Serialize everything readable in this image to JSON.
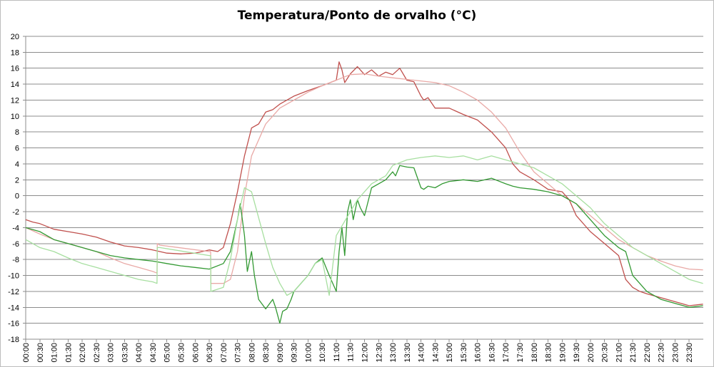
{
  "chart_data": {
    "type": "line",
    "title": "Temperatura/Ponto de orvalho (°C)",
    "xlabel": "",
    "ylabel": "",
    "ylim": [
      -18,
      20
    ],
    "y_ticks": [
      20,
      18,
      16,
      14,
      12,
      10,
      8,
      6,
      4,
      2,
      0,
      -2,
      -4,
      -6,
      -8,
      -10,
      -12,
      -14,
      -16,
      -18
    ],
    "x_tick_labels": [
      "00:00",
      "00:30",
      "01:00",
      "01:30",
      "02:00",
      "02:30",
      "03:00",
      "03:30",
      "04:00",
      "04:30",
      "05:00",
      "05:30",
      "06:00",
      "06:30",
      "07:00",
      "07:30",
      "08:00",
      "08:30",
      "09:00",
      "09:30",
      "10:00",
      "10:30",
      "11:00",
      "11:30",
      "12:00",
      "12:30",
      "13:00",
      "13:30",
      "14:00",
      "14:30",
      "15:00",
      "15:30",
      "16:00",
      "16:30",
      "17:00",
      "17:30",
      "18:00",
      "18:30",
      "19:00",
      "19:30",
      "20:00",
      "20:30",
      "21:00",
      "21:30",
      "22:00",
      "22:30",
      "23:00",
      "23:30"
    ],
    "grid": true,
    "legend": "none",
    "series": [
      {
        "color": "#c0504d",
        "x": [
          0,
          0.25,
          0.5,
          1,
          1.5,
          2,
          2.5,
          3,
          3.5,
          4,
          4.5,
          5,
          5.5,
          6,
          6.5,
          6.8,
          7,
          7.25,
          7.5,
          7.75,
          8,
          8.25,
          8.5,
          8.75,
          9,
          9.5,
          10,
          10.5,
          11,
          11.1,
          11.2,
          11.3,
          11.5,
          11.75,
          12,
          12.25,
          12.5,
          12.75,
          13,
          13.25,
          13.5,
          13.75,
          14,
          14.1,
          14.25,
          14.5,
          15,
          15.5,
          16,
          16.5,
          17,
          17.25,
          17.5,
          18,
          18.5,
          19,
          19.25,
          19.5,
          20,
          20.5,
          21,
          21.25,
          21.5,
          21.75,
          22,
          22.5,
          23,
          23.5,
          23.99
        ],
        "y": [
          -3,
          -3.3,
          -3.5,
          -4.2,
          -4.5,
          -4.8,
          -5.2,
          -5.8,
          -6.3,
          -6.5,
          -6.8,
          -7.2,
          -7.3,
          -7.2,
          -6.8,
          -7.0,
          -6.5,
          -3.5,
          0.5,
          5,
          8.5,
          9.0,
          10.5,
          10.8,
          11.5,
          12.5,
          13.2,
          13.8,
          14.5,
          16.8,
          15.8,
          14.2,
          15.3,
          16.2,
          15.2,
          15.8,
          15.0,
          15.5,
          15.2,
          16.0,
          14.5,
          14.3,
          12.5,
          12.0,
          12.3,
          11.0,
          11.0,
          10.2,
          9.5,
          8.0,
          6.0,
          4.0,
          3.0,
          2.0,
          0.8,
          0.5,
          -0.5,
          -2.5,
          -4.5,
          -6.0,
          -7.5,
          -10.5,
          -11.5,
          -12.0,
          -12.3,
          -12.8,
          -13.3,
          -13.8,
          -13.6
        ]
      },
      {
        "color": "#e9a9a6",
        "x": [
          0,
          0.5,
          1,
          1.5,
          2,
          2.5,
          3,
          3.5,
          4,
          4.5,
          4.65,
          4.66,
          4.75,
          6.5,
          6.55,
          6.56,
          7,
          7.25,
          7.5,
          7.75,
          8,
          8.5,
          9,
          9.5,
          10,
          10.5,
          11,
          11.5,
          12,
          12.5,
          13,
          13.5,
          14,
          14.5,
          15,
          15.5,
          16,
          16.5,
          17,
          17.5,
          18,
          18.5,
          19,
          19.5,
          20,
          20.5,
          21,
          21.5,
          22,
          22.5,
          23,
          23.5,
          23.99
        ],
        "y": [
          -4.0,
          -4.8,
          -5.5,
          -6.0,
          -6.5,
          -7.0,
          -7.8,
          -8.5,
          -9.0,
          -9.5,
          -9.7,
          -6.0,
          -6.2,
          -7.0,
          -7.0,
          -11.0,
          -11.0,
          -10.5,
          -7.0,
          0.0,
          5.0,
          9.0,
          11.0,
          12.0,
          13.0,
          13.8,
          14.5,
          15.2,
          15.3,
          15.0,
          14.8,
          14.6,
          14.4,
          14.2,
          13.8,
          13.0,
          12.0,
          10.5,
          8.5,
          5.5,
          3.0,
          1.5,
          0.0,
          -1.0,
          -2.5,
          -4.0,
          -5.5,
          -6.5,
          -7.5,
          -8.2,
          -8.8,
          -9.2,
          -9.3
        ]
      },
      {
        "color": "#339933",
        "x": [
          0,
          0.5,
          1,
          1.5,
          2,
          2.5,
          3,
          3.5,
          4,
          4.5,
          5,
          5.5,
          6,
          6.5,
          7,
          7.25,
          7.5,
          7.6,
          7.75,
          7.85,
          8,
          8.1,
          8.25,
          8.5,
          8.75,
          8.85,
          9,
          9.1,
          9.25,
          9.4,
          9.5,
          9.75,
          10,
          10.25,
          10.5,
          10.75,
          11,
          11.1,
          11.2,
          11.3,
          11.4,
          11.5,
          11.6,
          11.75,
          11.85,
          12,
          12.25,
          12.5,
          12.75,
          13,
          13.1,
          13.25,
          13.5,
          13.75,
          14,
          14.1,
          14.25,
          14.5,
          14.75,
          15,
          15.5,
          16,
          16.5,
          17,
          17.25,
          17.5,
          18,
          18.5,
          19,
          19.5,
          20,
          20.5,
          21,
          21.25,
          21.5,
          21.75,
          22,
          22.5,
          23,
          23.5,
          23.99
        ],
        "y": [
          -4.0,
          -4.5,
          -5.5,
          -6.0,
          -6.5,
          -7.0,
          -7.5,
          -7.8,
          -8.0,
          -8.2,
          -8.5,
          -8.8,
          -9.0,
          -9.2,
          -8.5,
          -7.0,
          -3.0,
          -1.0,
          -5.0,
          -9.5,
          -7.0,
          -10.0,
          -13.0,
          -14.2,
          -13.0,
          -14.0,
          -16.0,
          -14.5,
          -14.2,
          -13.0,
          -12.0,
          -11.0,
          -10.0,
          -8.5,
          -7.8,
          -10.0,
          -12.0,
          -7.0,
          -4.0,
          -7.5,
          -2.0,
          -0.5,
          -3.0,
          -0.5,
          -1.5,
          -2.5,
          1.0,
          1.5,
          2.0,
          3.0,
          2.5,
          3.8,
          3.6,
          3.5,
          1.0,
          0.8,
          1.2,
          1.0,
          1.5,
          1.8,
          2.0,
          1.8,
          2.2,
          1.5,
          1.2,
          1.0,
          0.8,
          0.5,
          0.0,
          -1.0,
          -3.0,
          -5.0,
          -6.5,
          -7.0,
          -10.0,
          -11.0,
          -12.0,
          -13.0,
          -13.5,
          -14.0,
          -13.8
        ]
      },
      {
        "color": "#a7dfa0",
        "x": [
          0,
          0.5,
          1,
          1.5,
          2,
          2.5,
          3,
          3.5,
          4,
          4.5,
          4.65,
          4.66,
          4.75,
          6.5,
          6.55,
          6.56,
          7,
          7.25,
          7.5,
          7.75,
          8,
          8.5,
          8.75,
          9,
          9.25,
          9.5,
          9.75,
          10,
          10.25,
          10.5,
          10.75,
          11,
          11.25,
          11.5,
          11.75,
          12,
          12.25,
          12.5,
          12.75,
          13,
          13.5,
          14,
          14.5,
          15,
          15.5,
          16,
          16.5,
          17,
          17.5,
          18,
          18.5,
          19,
          19.5,
          20,
          20.5,
          21,
          21.5,
          22,
          22.5,
          23,
          23.5,
          23.99
        ],
        "y": [
          -5.5,
          -6.5,
          -7.0,
          -7.8,
          -8.5,
          -9.0,
          -9.5,
          -10.0,
          -10.5,
          -10.8,
          -11.0,
          -6.5,
          -6.5,
          -7.5,
          -7.5,
          -12.0,
          -11.5,
          -8.0,
          -3.0,
          1.0,
          0.5,
          -6.0,
          -9.0,
          -11.0,
          -12.5,
          -12.0,
          -11.0,
          -10.0,
          -8.5,
          -8.0,
          -12.5,
          -5.0,
          -3.5,
          -2.0,
          -0.5,
          0.5,
          1.5,
          2.0,
          2.5,
          3.8,
          4.5,
          4.8,
          5.0,
          4.8,
          5.0,
          4.5,
          5.0,
          4.5,
          4.0,
          3.5,
          2.5,
          1.5,
          0.0,
          -1.5,
          -3.5,
          -5.0,
          -6.5,
          -7.5,
          -8.5,
          -9.5,
          -10.5,
          -11.0
        ]
      }
    ]
  }
}
